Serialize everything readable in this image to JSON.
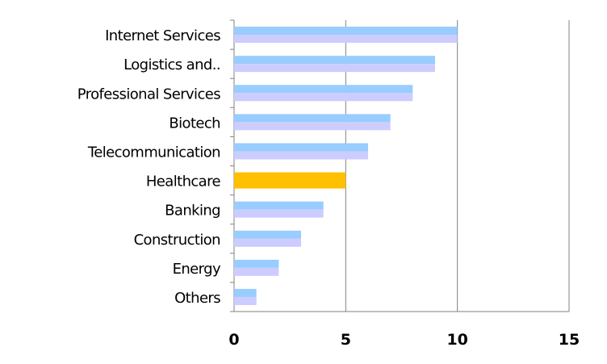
{
  "chart_data": {
    "type": "bar",
    "orientation": "horizontal",
    "categories": [
      "Internet Services",
      "Logistics and..",
      "Professional Services",
      "Biotech",
      "Telecommunication",
      "Healthcare",
      "Banking",
      "Construction",
      "Energy",
      "Others"
    ],
    "values": [
      10,
      9,
      8,
      7,
      6,
      5,
      4,
      3,
      2,
      1
    ],
    "highlight_category": "Healthcare",
    "colors": {
      "bar_top": "#99ccff",
      "bar_bottom": "#ccccff",
      "highlight": "#ffc000",
      "grid": "#808080"
    },
    "xlim": [
      0,
      15
    ],
    "xticks": [
      "0",
      "5",
      "10",
      "15"
    ],
    "grid": "vertical",
    "legend": "none",
    "title": "",
    "xlabel": "",
    "ylabel": ""
  }
}
